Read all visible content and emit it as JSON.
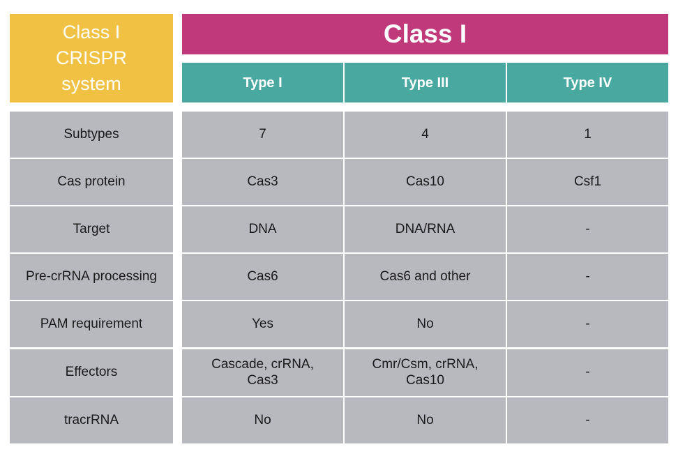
{
  "header": {
    "system_label": "Class I\nCRISPR\nsystem",
    "class_label": "Class I",
    "types": [
      "Type I",
      "Type III",
      "Type IV"
    ]
  },
  "rows": [
    {
      "label": "Subtypes",
      "values": [
        "7",
        "4",
        "1"
      ]
    },
    {
      "label": "Cas protein",
      "values": [
        "Cas3",
        "Cas10",
        "Csf1"
      ]
    },
    {
      "label": "Target",
      "values": [
        "DNA",
        "DNA/RNA",
        "-"
      ]
    },
    {
      "label": "Pre-crRNA processing",
      "values": [
        "Cas6",
        "Cas6 and other",
        "-"
      ]
    },
    {
      "label": "PAM requirement",
      "values": [
        "Yes",
        "No",
        "-"
      ]
    },
    {
      "label": "Effectors",
      "values": [
        "Cascade, crRNA,\nCas3",
        "Cmr/Csm, crRNA,\nCas10",
        "-"
      ]
    },
    {
      "label": "tracrRNA",
      "values": [
        "No",
        "No",
        "-"
      ]
    }
  ],
  "colors": {
    "system_header": "#f0c142",
    "class_header": "#c03a7b",
    "type_header": "#49a8a0",
    "cell": "#b8b8bf"
  }
}
